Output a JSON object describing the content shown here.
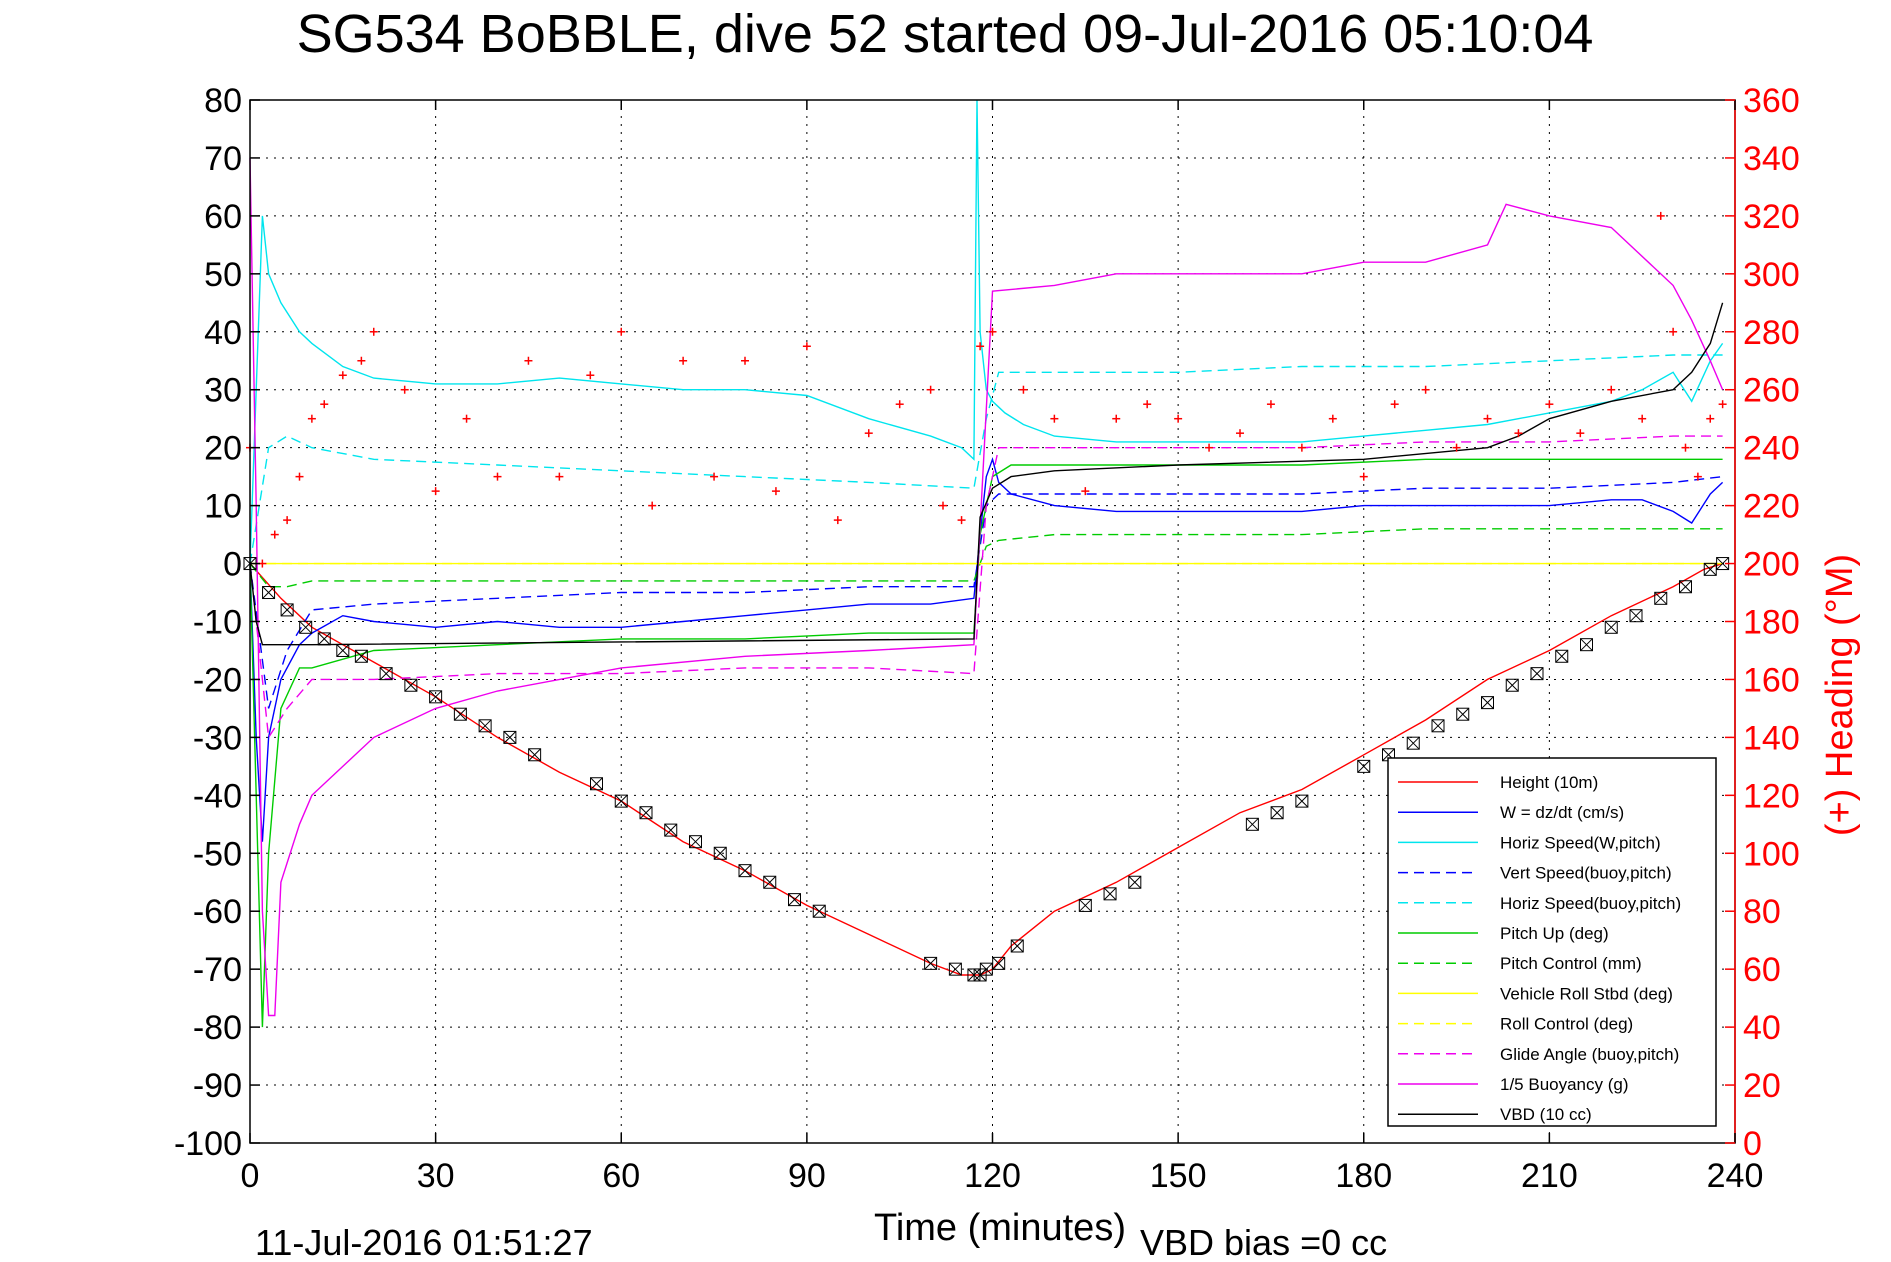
{
  "chart_data": {
    "type": "line",
    "title": "SG534 BoBBLE, dive 52 started 09-Jul-2016 05:10:04",
    "xlabel": "Time (minutes)",
    "ylabel_right": "(+) Heading (°M)",
    "footer_timestamp": "11-Jul-2016 01:51:27",
    "footer_vbd_bias": "VBD bias =0 cc",
    "xlim": [
      0,
      240
    ],
    "ylim_left": [
      -100,
      80
    ],
    "ylim_right": [
      0,
      360
    ],
    "x_ticks": [
      "0",
      "30",
      "60",
      "90",
      "120",
      "150",
      "180",
      "210",
      "240"
    ],
    "y_left_ticks": [
      "80",
      "70",
      "60",
      "50",
      "40",
      "30",
      "20",
      "10",
      "0",
      "-10",
      "-20",
      "-30",
      "-40",
      "-50",
      "-60",
      "-70",
      "-80",
      "-90",
      "-100"
    ],
    "y_right_ticks": [
      "360",
      "340",
      "320",
      "300",
      "280",
      "260",
      "240",
      "220",
      "200",
      "180",
      "160",
      "140",
      "120",
      "100",
      "80",
      "60",
      "40",
      "20",
      "0"
    ],
    "grid": true,
    "legend_position": "bottom-right",
    "series": [
      {
        "name": "Height (10m)",
        "color": "#ff0000",
        "style": "solid",
        "axis": "left",
        "x": [
          0,
          5,
          10,
          15,
          20,
          30,
          40,
          50,
          60,
          70,
          80,
          90,
          100,
          110,
          115,
          117,
          118,
          120,
          123,
          130,
          140,
          150,
          160,
          170,
          180,
          190,
          200,
          210,
          220,
          230,
          235,
          238
        ],
        "y": [
          0,
          -6,
          -11,
          -14,
          -17,
          -23,
          -30,
          -36,
          -41,
          -48,
          -53,
          -59,
          -64,
          -69,
          -71,
          -71,
          -71,
          -70,
          -66,
          -60,
          -55,
          -49,
          -43,
          -39,
          -33,
          -27,
          -20,
          -15,
          -9,
          -4,
          -1,
          0
        ]
      },
      {
        "name": "W = dz/dt (cm/s)",
        "color": "#0000ff",
        "style": "solid",
        "axis": "left",
        "x": [
          0,
          1,
          2,
          3,
          5,
          8,
          10,
          15,
          20,
          30,
          40,
          50,
          60,
          70,
          80,
          90,
          100,
          110,
          117,
          118,
          119,
          120,
          121,
          123,
          130,
          140,
          150,
          160,
          170,
          180,
          190,
          200,
          210,
          220,
          225,
          230,
          233,
          236,
          238
        ],
        "y": [
          0,
          -30,
          -48,
          -30,
          -20,
          -14,
          -12,
          -9,
          -10,
          -11,
          -10,
          -11,
          -11,
          -10,
          -9,
          -8,
          -7,
          -7,
          -6,
          5,
          15,
          18,
          14,
          12,
          10,
          9,
          9,
          9,
          9,
          10,
          10,
          10,
          10,
          11,
          11,
          9,
          7,
          12,
          14
        ]
      },
      {
        "name": "Horiz Speed(W,pitch)",
        "color": "#00e5ee",
        "style": "solid",
        "axis": "left",
        "x": [
          0,
          1,
          2,
          3,
          5,
          8,
          10,
          15,
          20,
          30,
          40,
          50,
          60,
          70,
          80,
          90,
          100,
          110,
          115,
          117,
          117.5,
          118,
          119,
          120,
          122,
          125,
          130,
          140,
          150,
          160,
          170,
          180,
          190,
          200,
          210,
          220,
          225,
          230,
          233,
          236,
          238
        ],
        "y": [
          0,
          30,
          60,
          50,
          45,
          40,
          38,
          34,
          32,
          31,
          31,
          32,
          31,
          30,
          30,
          29,
          25,
          22,
          20,
          18,
          80,
          40,
          30,
          28,
          26,
          24,
          22,
          21,
          21,
          21,
          21,
          22,
          23,
          24,
          26,
          28,
          30,
          33,
          28,
          35,
          38
        ]
      },
      {
        "name": "Vert Speed(buoy,pitch)",
        "color": "#0000ff",
        "style": "dashed",
        "axis": "left",
        "x": [
          0,
          3,
          6,
          10,
          20,
          40,
          60,
          80,
          100,
          117,
          119,
          121,
          130,
          150,
          170,
          190,
          210,
          230,
          238
        ],
        "y": [
          0,
          -25,
          -15,
          -8,
          -7,
          -6,
          -5,
          -5,
          -4,
          -4,
          10,
          12,
          12,
          12,
          12,
          13,
          13,
          14,
          15
        ]
      },
      {
        "name": "Horiz Speed(buoy,pitch)",
        "color": "#00e5ee",
        "style": "dashed",
        "axis": "left",
        "x": [
          0,
          3,
          6,
          10,
          20,
          40,
          60,
          80,
          100,
          117,
          119,
          121,
          130,
          150,
          170,
          190,
          210,
          230,
          238
        ],
        "y": [
          0,
          20,
          22,
          20,
          18,
          17,
          16,
          15,
          14,
          13,
          25,
          33,
          33,
          33,
          34,
          34,
          35,
          36,
          36
        ]
      },
      {
        "name": "Pitch Up (deg)",
        "color": "#00cc00",
        "style": "solid",
        "axis": "left",
        "x": [
          0,
          1,
          2,
          3,
          5,
          8,
          10,
          20,
          40,
          60,
          80,
          100,
          117,
          118,
          120,
          123,
          130,
          150,
          170,
          190,
          210,
          230,
          238
        ],
        "y": [
          0,
          -40,
          -80,
          -50,
          -25,
          -18,
          -18,
          -15,
          -14,
          -13,
          -13,
          -12,
          -12,
          5,
          15,
          17,
          17,
          17,
          17,
          18,
          18,
          18,
          18
        ]
      },
      {
        "name": "Pitch Control (mm)",
        "color": "#00cc00",
        "style": "dashed",
        "axis": "left",
        "x": [
          0,
          3,
          6,
          10,
          20,
          40,
          60,
          80,
          100,
          117,
          119,
          121,
          130,
          150,
          170,
          190,
          210,
          230,
          238
        ],
        "y": [
          0,
          -4,
          -4,
          -3,
          -3,
          -3,
          -3,
          -3,
          -3,
          -3,
          3,
          4,
          5,
          5,
          5,
          6,
          6,
          6,
          6
        ]
      },
      {
        "name": "Vehicle Roll Stbd (deg)",
        "color": "#ffff00",
        "style": "solid",
        "axis": "left",
        "x": [
          0,
          5,
          10,
          20,
          30,
          40,
          50,
          60,
          70,
          80,
          90,
          100,
          110,
          117,
          120,
          130,
          140,
          150,
          160,
          170,
          180,
          190,
          200,
          210,
          220,
          230,
          238
        ],
        "y": [
          0,
          0,
          0,
          0,
          0,
          0,
          0,
          0,
          0,
          0,
          0,
          0,
          0,
          0,
          0,
          0,
          0,
          0,
          0,
          0,
          0,
          0,
          0,
          0,
          0,
          0,
          0
        ]
      },
      {
        "name": "Roll Control (deg)",
        "color": "#ffff00",
        "style": "dashed",
        "axis": "left",
        "x": [
          0,
          20,
          40,
          60,
          80,
          100,
          117,
          120,
          140,
          160,
          180,
          200,
          220,
          238
        ],
        "y": [
          0,
          0,
          0,
          0,
          0,
          0,
          0,
          0,
          0,
          0,
          0,
          0,
          0,
          0
        ]
      },
      {
        "name": "Glide Angle (buoy,pitch)",
        "color": "#ee00ee",
        "style": "dashed",
        "axis": "left",
        "x": [
          0,
          3,
          6,
          10,
          20,
          40,
          60,
          80,
          100,
          117,
          119,
          121,
          130,
          150,
          170,
          190,
          210,
          230,
          238
        ],
        "y": [
          0,
          -30,
          -25,
          -20,
          -20,
          -19,
          -19,
          -18,
          -18,
          -19,
          10,
          20,
          20,
          20,
          20,
          21,
          21,
          22,
          22
        ]
      },
      {
        "name": "1/5 Buoyancy (g)",
        "color": "#ee00ee",
        "style": "solid",
        "axis": "left",
        "x": [
          0,
          1,
          2,
          3,
          4,
          5,
          8,
          10,
          15,
          20,
          30,
          40,
          60,
          80,
          100,
          117,
          120,
          130,
          140,
          150,
          160,
          170,
          180,
          190,
          200,
          203,
          210,
          220,
          230,
          233,
          236,
          238
        ],
        "y": [
          70,
          10,
          -60,
          -78,
          -78,
          -55,
          -45,
          -40,
          -35,
          -30,
          -25,
          -22,
          -18,
          -16,
          -15,
          -14,
          47,
          48,
          50,
          50,
          50,
          50,
          52,
          52,
          55,
          62,
          60,
          58,
          48,
          42,
          35,
          30
        ]
      },
      {
        "name": "VBD (10 cc)",
        "color": "#000000",
        "style": "solid",
        "axis": "left",
        "x": [
          0,
          1,
          2,
          10,
          117,
          118,
          120,
          123,
          130,
          150,
          180,
          200,
          205,
          210,
          220,
          230,
          233,
          236,
          238
        ],
        "y": [
          0,
          -10,
          -14,
          -14,
          -13,
          8,
          13,
          15,
          16,
          17,
          18,
          20,
          22,
          25,
          28,
          30,
          33,
          38,
          45
        ]
      },
      {
        "name": "Heading",
        "color": "#ff0000",
        "style": "markers",
        "axis": "right",
        "x": [
          0,
          2,
          4,
          6,
          8,
          10,
          12,
          15,
          18,
          20,
          25,
          30,
          35,
          40,
          45,
          50,
          55,
          60,
          65,
          70,
          75,
          80,
          85,
          90,
          95,
          100,
          105,
          110,
          112,
          115,
          118,
          120,
          125,
          130,
          135,
          140,
          145,
          150,
          155,
          160,
          165,
          170,
          175,
          180,
          185,
          190,
          195,
          200,
          205,
          210,
          215,
          220,
          225,
          228,
          230,
          232,
          234,
          236,
          238
        ],
        "y": [
          240,
          200,
          210,
          215,
          230,
          250,
          255,
          265,
          270,
          280,
          260,
          225,
          250,
          230,
          270,
          230,
          265,
          280,
          220,
          270,
          230,
          270,
          225,
          275,
          215,
          245,
          255,
          260,
          220,
          215,
          275,
          280,
          260,
          250,
          225,
          250,
          255,
          250,
          240,
          245,
          255,
          240,
          250,
          230,
          255,
          260,
          240,
          250,
          245,
          255,
          245,
          260,
          250,
          320,
          280,
          240,
          230,
          250,
          255
        ]
      },
      {
        "name": "Height markers",
        "color": "#000000",
        "style": "markers-only",
        "axis": "left",
        "x": [
          0,
          3,
          6,
          9,
          12,
          15,
          18,
          22,
          26,
          30,
          34,
          38,
          42,
          46,
          56,
          60,
          64,
          68,
          72,
          76,
          80,
          84,
          88,
          92,
          110,
          114,
          117,
          118,
          119,
          121,
          124,
          135,
          139,
          143,
          162,
          166,
          170,
          180,
          184,
          188,
          192,
          196,
          200,
          204,
          208,
          212,
          216,
          220,
          224,
          228,
          232,
          236,
          238
        ],
        "y": [
          0,
          -5,
          -8,
          -11,
          -13,
          -15,
          -16,
          -19,
          -21,
          -23,
          -26,
          -28,
          -30,
          -33,
          -38,
          -41,
          -43,
          -46,
          -48,
          -50,
          -53,
          -55,
          -58,
          -60,
          -69,
          -70,
          -71,
          -71,
          -70,
          -69,
          -66,
          -59,
          -57,
          -55,
          -45,
          -43,
          -41,
          -35,
          -33,
          -31,
          -28,
          -26,
          -24,
          -21,
          -19,
          -16,
          -14,
          -11,
          -9,
          -6,
          -4,
          -1,
          0
        ]
      }
    ]
  }
}
